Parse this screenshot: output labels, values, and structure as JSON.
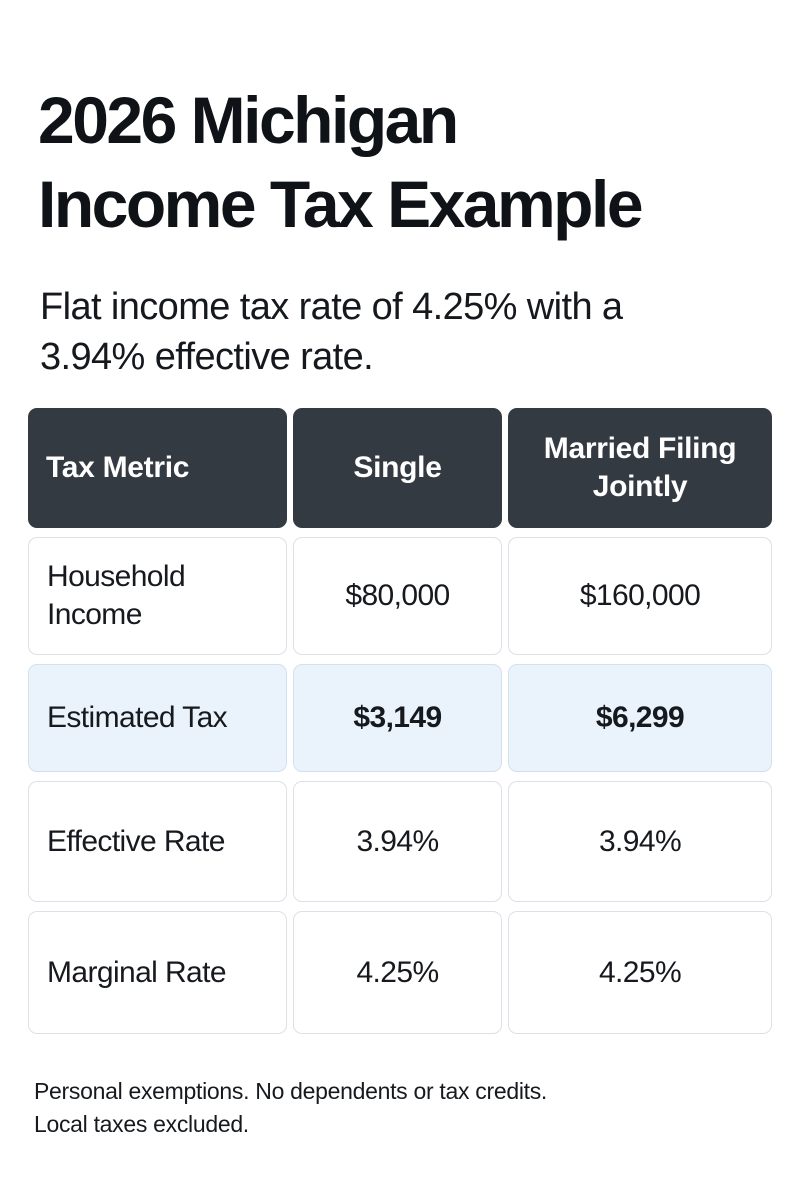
{
  "title": {
    "line1": "2026 Michigan",
    "line2": "Income Tax Example"
  },
  "subtitle": {
    "line1": "Flat income tax rate of 4.25% with a",
    "line2": "3.94% effective rate."
  },
  "table": {
    "headers": {
      "metric": "Tax Metric",
      "single": "Single",
      "married_line1": "Married Filing",
      "married_line2": "Jointly"
    },
    "rows": [
      {
        "metric_line1": "Household",
        "metric_line2": "Income",
        "single": "$80,000",
        "married": "$160,000",
        "highlight": false
      },
      {
        "metric_line1": "Estimated Tax",
        "metric_line2": "",
        "single": "$3,149",
        "married": "$6,299",
        "highlight": true
      },
      {
        "metric_line1": "Effective Rate",
        "metric_line2": "",
        "single": "3.94%",
        "married": "3.94%",
        "highlight": false
      },
      {
        "metric_line1": "Marginal Rate",
        "metric_line2": "",
        "single": "4.25%",
        "married": "4.25%",
        "highlight": false
      }
    ]
  },
  "footnote": {
    "line1": "Personal exemptions. No dependents or tax credits.",
    "line2": "Local taxes excluded."
  },
  "colors": {
    "header_bg": "#343a42",
    "highlight_bg": "#eaf3fc",
    "text": "#111418"
  }
}
